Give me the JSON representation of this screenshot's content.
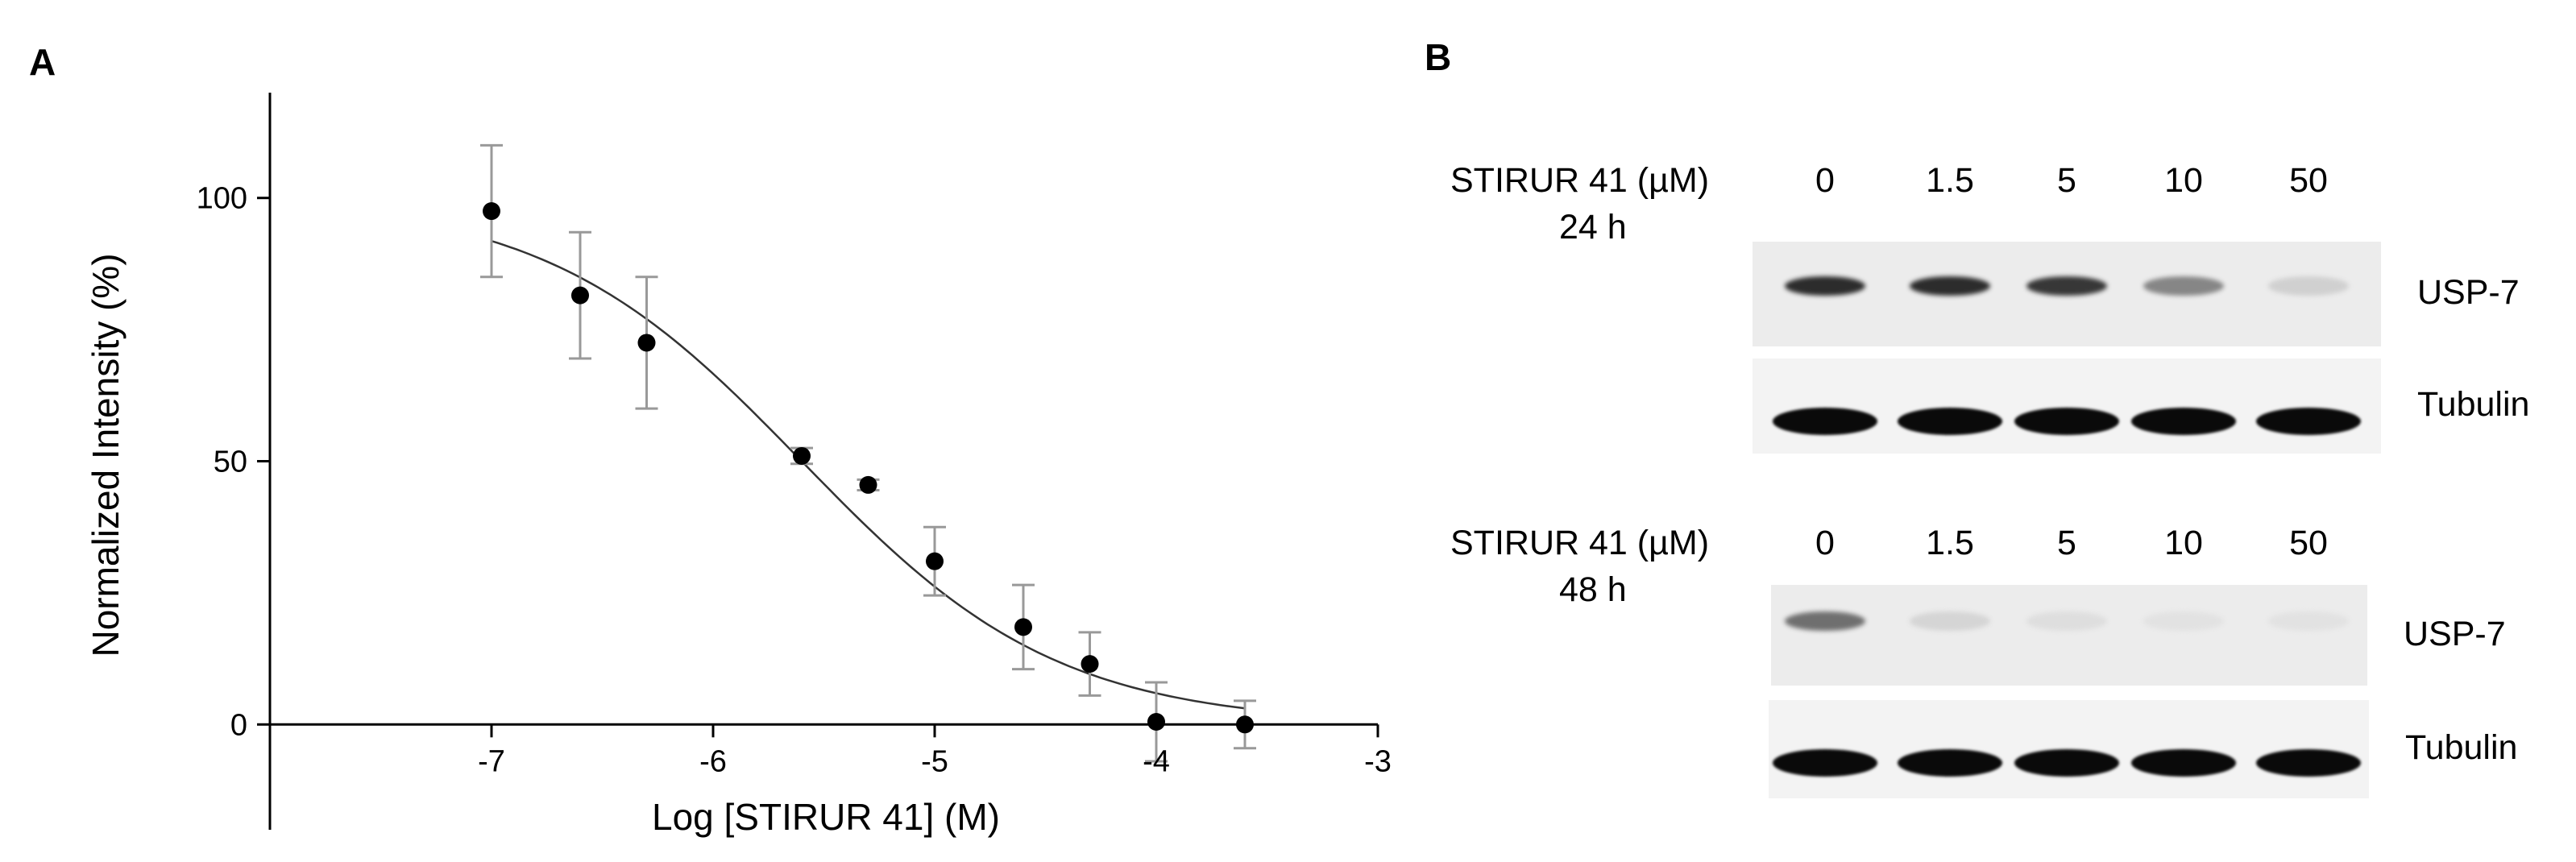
{
  "panels": {
    "a_label": "A",
    "b_label": "B"
  },
  "chart_data": {
    "type": "scatter",
    "xlabel": "Log [STIRUR 41] (M)",
    "ylabel": "Normalized Intensity (%)",
    "xlim": [
      -8.0,
      -3.0
    ],
    "ylim": [
      -20,
      120
    ],
    "x_ticks": [
      -7,
      -6,
      -5,
      -4,
      -3
    ],
    "x_tick_labels": [
      "-7",
      "-6",
      "-5",
      "-4",
      "-3"
    ],
    "y_ticks": [
      0,
      50,
      100
    ],
    "y_tick_labels": [
      "0",
      "50",
      "100"
    ],
    "grid": false,
    "points": [
      {
        "x": -7.0,
        "y": 97.5,
        "err": 12.5
      },
      {
        "x": -6.6,
        "y": 81.5,
        "err": 12.0
      },
      {
        "x": -6.3,
        "y": 72.5,
        "err": 12.5
      },
      {
        "x": -5.6,
        "y": 51.0,
        "err": 1.5
      },
      {
        "x": -5.3,
        "y": 45.5,
        "err": 1.0
      },
      {
        "x": -5.0,
        "y": 31.0,
        "err": 6.5
      },
      {
        "x": -4.6,
        "y": 18.5,
        "err": 8.0
      },
      {
        "x": -4.3,
        "y": 11.5,
        "err": 6.0
      },
      {
        "x": -4.0,
        "y": 0.5,
        "err": 7.5
      },
      {
        "x": -3.6,
        "y": 0.0,
        "err": 4.5
      }
    ],
    "fit": {
      "model": "sigmoid",
      "top": 100,
      "bottom": 0,
      "logIC50": -5.6,
      "hill": -0.75,
      "x_range": [
        -7.0,
        -3.6
      ]
    }
  },
  "blot": {
    "rows": [
      {
        "label": "STIRUR 41 (µM)",
        "time": "24 h",
        "concentrations": [
          "0",
          "1.5",
          "5",
          "10",
          "50"
        ],
        "bands": [
          {
            "name": "USP-7",
            "intensity": [
              0.85,
              0.85,
              0.8,
              0.45,
              0.12
            ]
          },
          {
            "name": "Tubulin",
            "intensity": [
              1.0,
              1.0,
              1.0,
              1.0,
              1.0
            ]
          }
        ]
      },
      {
        "label": "STIRUR 41 (µM)",
        "time": "48 h",
        "concentrations": [
          "0",
          "1.5",
          "5",
          "10",
          "50"
        ],
        "bands": [
          {
            "name": "USP-7",
            "intensity": [
              0.55,
              0.1,
              0.06,
              0.04,
              0.04
            ]
          },
          {
            "name": "Tubulin",
            "intensity": [
              1.0,
              1.0,
              1.0,
              1.0,
              1.0
            ]
          }
        ]
      }
    ]
  }
}
